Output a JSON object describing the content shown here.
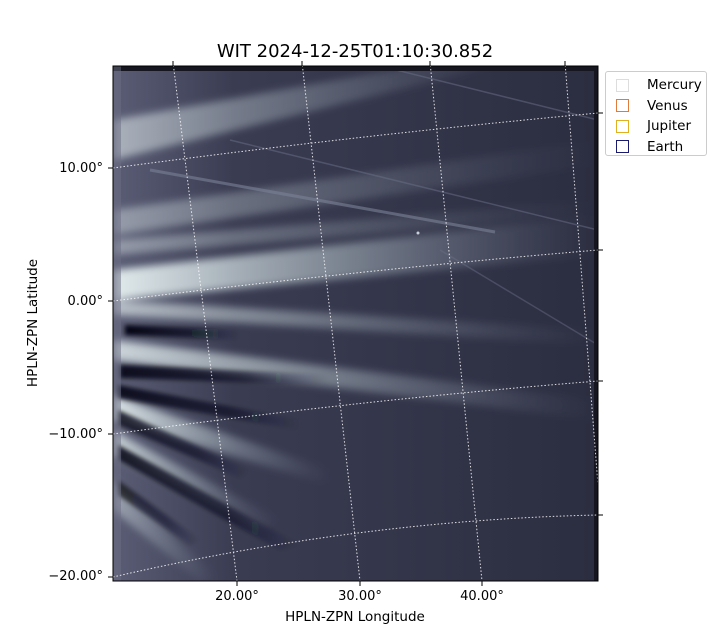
{
  "title": "WIT 2024-12-25T01:10:30.852",
  "axes": {
    "xlabel": "HPLN-ZPN Longitude",
    "ylabel": "HPLN-ZPN Latitude",
    "x_ticks": [
      "20.00°",
      "30.00°",
      "40.00°"
    ],
    "y_ticks": [
      "10.00°",
      "0.00°",
      "−10.00°",
      "−20.00°"
    ]
  },
  "legend": [
    {
      "label": "Mercury",
      "color": "#dddddd"
    },
    {
      "label": "Venus",
      "color": "#e07b39"
    },
    {
      "label": "Jupiter",
      "color": "#e0b020"
    },
    {
      "label": "Earth",
      "color": "#1a1a6e"
    }
  ],
  "colors": {
    "background_dark": "#2b2d40",
    "streamer_light": "#dfe9ea",
    "grid": "#ffffff"
  }
}
